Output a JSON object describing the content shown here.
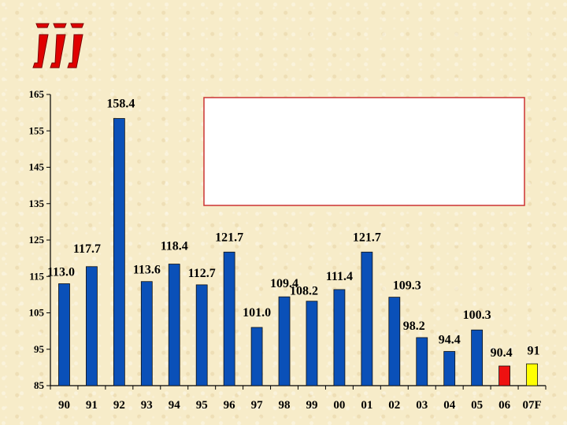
{
  "chart_data": {
    "type": "bar",
    "categories": [
      "90",
      "91",
      "92",
      "93",
      "94",
      "95",
      "96",
      "97",
      "98",
      "99",
      "00",
      "01",
      "02",
      "03",
      "04",
      "05",
      "06",
      "07F"
    ],
    "values": [
      113.0,
      117.7,
      158.4,
      113.6,
      118.4,
      112.7,
      121.7,
      101.0,
      109.4,
      108.2,
      111.4,
      121.7,
      109.3,
      98.2,
      94.4,
      100.3,
      90.4,
      91
    ],
    "data_labels": [
      "113.0",
      "117.7",
      "158.4",
      "113.6",
      "118.4",
      "112.7",
      "121.7",
      "101.0",
      "109.4",
      "108.2",
      "111.4",
      "121.7",
      "109.3",
      "98.2",
      "94.4",
      "100.3",
      "90.4",
      "91"
    ],
    "y_ticks": [
      85,
      95,
      105,
      115,
      125,
      135,
      145,
      155,
      165
    ],
    "ylim": [
      85,
      165
    ],
    "bar_colors": [
      "#0a50b8",
      "#0a50b8",
      "#0a50b8",
      "#0a50b8",
      "#0a50b8",
      "#0a50b8",
      "#0a50b8",
      "#0a50b8",
      "#0a50b8",
      "#0a50b8",
      "#0a50b8",
      "#0a50b8",
      "#0a50b8",
      "#0a50b8",
      "#0a50b8",
      "#0a50b8",
      "#ee1111",
      "#ffff00"
    ],
    "grid": false,
    "title": "",
    "xlabel": "",
    "ylabel": ""
  },
  "colors": {
    "logo": "#e00000",
    "rule_start": "#ff1a4a",
    "rule_end": "#1a3bff",
    "box_border": "#cc3333"
  },
  "logo_icon": "iii-logo-icon"
}
